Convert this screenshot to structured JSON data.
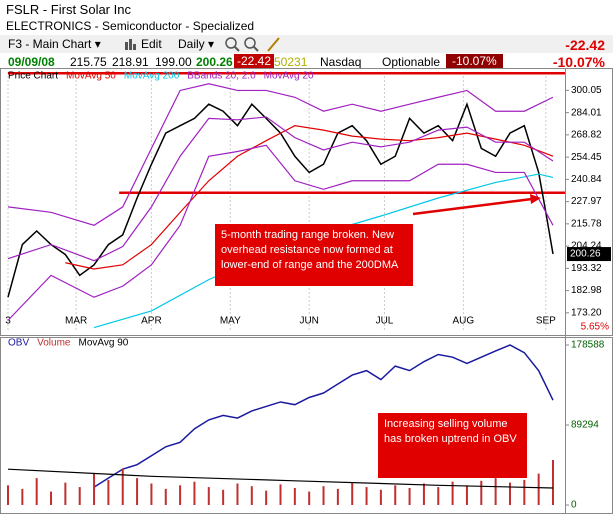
{
  "header": {
    "symbol": "FSLR - First Solar Inc",
    "industry": "ELECTRONICS - Semiconductor - Specialized",
    "chart_name": "F3 - Main Chart",
    "edit": "Edit",
    "period": "Daily",
    "date": "09/09/08",
    "open": 215.75,
    "high": 218.91,
    "low": "199.00",
    "close": 200.26,
    "change": -22.42,
    "volume": 50231,
    "exchange": "Nasdaq",
    "optionable": "Optionable",
    "change_pct": "-10.07%"
  },
  "chart_data": [
    {
      "type": "line",
      "title": "Price Chart",
      "log": true,
      "grid": true,
      "xlim": [
        0,
        152
      ],
      "ylim": [
        166,
        314
      ],
      "xticks": [
        {
          "value": 0,
          "label": "3"
        },
        {
          "value": 19,
          "label": "MAR"
        },
        {
          "value": 40,
          "label": "APR"
        },
        {
          "value": 62,
          "label": "MAY"
        },
        {
          "value": 84,
          "label": "JUN"
        },
        {
          "value": 105,
          "label": "JUL"
        },
        {
          "value": 127,
          "label": "AUG"
        },
        {
          "value": 150,
          "label": "SEP"
        }
      ],
      "yticks": [
        300.05,
        284.01,
        268.82,
        254.45,
        240.84,
        227.97,
        215.78,
        204.24,
        193.32,
        182.98,
        {
          "value": 173.2,
          "label": "173.20"
        }
      ],
      "hlines": [
        {
          "value": 313,
          "from": 0,
          "color": "#e00000"
        },
        {
          "value": 233,
          "from": 31,
          "color": "#e00000"
        }
      ],
      "corner_label": "5.65%",
      "annotation": "5-month trading range broken. New overhead resistance now formed at lower-end of range and the 200DMA",
      "series": [
        {
          "color": "#000000",
          "x": [
            0,
            4,
            8,
            12,
            16,
            20,
            24,
            28,
            32,
            36,
            40,
            44,
            48,
            52,
            56,
            60,
            64,
            68,
            72,
            76,
            80,
            84,
            88,
            92,
            96,
            100,
            104,
            108,
            112,
            116,
            120,
            124,
            128,
            132,
            136,
            140,
            144,
            148,
            150,
            152
          ],
          "values": [
            180,
            205,
            212,
            205,
            200,
            190,
            195,
            205,
            210,
            230,
            250,
            270,
            275,
            280,
            290,
            285,
            275,
            290,
            280,
            270,
            255,
            245,
            250,
            270,
            275,
            265,
            250,
            255,
            280,
            270,
            275,
            265,
            290,
            260,
            255,
            270,
            275,
            245,
            222,
            200.26
          ]
        },
        {
          "name": "MovAvg 50",
          "color": "#e00000",
          "x": [
            16,
            24,
            32,
            40,
            48,
            56,
            64,
            72,
            80,
            88,
            96,
            104,
            112,
            120,
            128,
            136,
            144,
            152
          ],
          "values": [
            196,
            193,
            195,
            205,
            222,
            240,
            255,
            265,
            275,
            272,
            268,
            266,
            265,
            267,
            270,
            266,
            262,
            255
          ]
        },
        {
          "name": "MovAvg 200",
          "color": "#00c8e6",
          "x": [
            24,
            40,
            56,
            72,
            88,
            104,
            120,
            136,
            148,
            152
          ],
          "values": [
            167,
            174,
            188,
            200,
            211,
            220,
            230,
            239,
            244,
            242
          ]
        },
        {
          "name": "BBands 20, 2.0",
          "color": "#a020c0",
          "x": [
            0,
            12,
            24,
            32,
            40,
            48,
            56,
            64,
            72,
            80,
            88,
            96,
            104,
            112,
            120,
            128,
            136,
            144,
            152
          ],
          "values": [
            225,
            222,
            215,
            225,
            260,
            300,
            305,
            300,
            300,
            295,
            285,
            290,
            285,
            290,
            295,
            300,
            285,
            285,
            295
          ]
        },
        {
          "color": "#a020c0",
          "x": [
            0,
            12,
            24,
            32,
            40,
            48,
            56,
            64,
            72,
            80,
            88,
            96,
            104,
            112,
            120,
            128,
            136,
            144,
            152
          ],
          "values": [
            170,
            190,
            180,
            185,
            195,
            215,
            255,
            258,
            262,
            240,
            235,
            240,
            240,
            240,
            250,
            250,
            245,
            245,
            215
          ]
        },
        {
          "name": "MovAvg 20",
          "color": "#a020c0",
          "x": [
            0,
            12,
            24,
            32,
            40,
            48,
            56,
            64,
            72,
            80,
            88,
            96,
            104,
            112,
            120,
            128,
            136,
            144,
            152
          ],
          "values": [
            198,
            205,
            197,
            204,
            225,
            255,
            280,
            279,
            281,
            267,
            259,
            264,
            261,
            264,
            272,
            274,
            264,
            264,
            252
          ]
        }
      ]
    },
    {
      "type": "line",
      "log": false,
      "grid": false,
      "xlim": [
        0,
        152
      ],
      "ylim": [
        0,
        184169
      ],
      "yticks": [
        178588,
        89294,
        0
      ],
      "annotation": "Increasing selling volume has broken uptrend in OBV",
      "series": [
        {
          "name": "OBV",
          "color": "#1a1aa0",
          "x": [
            24,
            28,
            32,
            36,
            40,
            44,
            48,
            52,
            56,
            60,
            64,
            68,
            72,
            76,
            80,
            84,
            88,
            92,
            96,
            100,
            104,
            108,
            112,
            116,
            120,
            124,
            128,
            132,
            136,
            140,
            144,
            148,
            152
          ],
          "values": [
            20000,
            30000,
            40000,
            45000,
            55000,
            65000,
            70000,
            85000,
            95000,
            100000,
            97000,
            105000,
            110000,
            115000,
            112000,
            120000,
            125000,
            135000,
            145000,
            150000,
            140000,
            155000,
            150000,
            160000,
            168000,
            165000,
            158000,
            165000,
            172000,
            178588,
            170000,
            150000,
            117000
          ]
        },
        {
          "name": "Volume",
          "style": "bar",
          "color": "#c03030",
          "x": [
            0,
            4,
            8,
            12,
            16,
            20,
            24,
            28,
            32,
            36,
            40,
            44,
            48,
            52,
            56,
            60,
            64,
            68,
            72,
            76,
            80,
            84,
            88,
            92,
            96,
            100,
            104,
            108,
            112,
            116,
            120,
            124,
            128,
            132,
            136,
            140,
            144,
            148,
            152
          ],
          "values": [
            22000,
            18000,
            30000,
            15000,
            25000,
            20000,
            35000,
            28000,
            40000,
            30000,
            24000,
            18000,
            22000,
            26000,
            20000,
            17000,
            24000,
            21000,
            16000,
            23000,
            19000,
            15000,
            21000,
            18000,
            25000,
            20000,
            17000,
            22000,
            19000,
            24000,
            20000,
            26000,
            22000,
            27000,
            30000,
            25000,
            28000,
            35000,
            50231
          ]
        },
        {
          "name": "MovAvg 90",
          "color": "#000000",
          "x": [
            0,
            40,
            80,
            120,
            152
          ],
          "values": [
            40000,
            32000,
            27000,
            22000,
            19000
          ]
        }
      ]
    }
  ]
}
